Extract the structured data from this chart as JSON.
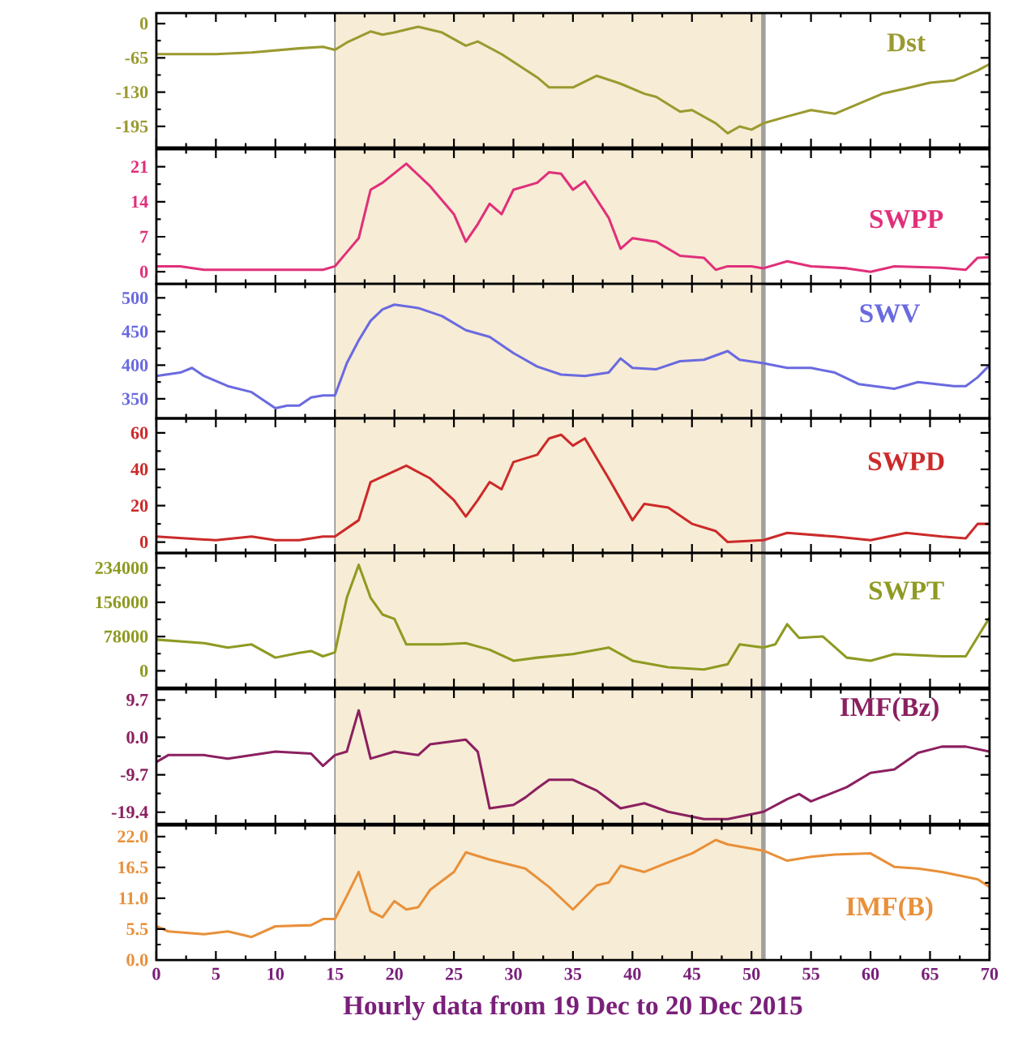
{
  "chart_data": [
    {
      "type": "line",
      "xlim": [
        0,
        70
      ],
      "xticks": [
        0,
        5,
        10,
        15,
        20,
        25,
        30,
        35,
        40,
        45,
        50,
        55,
        60,
        65,
        70
      ],
      "ylim": [
        -235,
        20
      ],
      "yticks": [
        0,
        -65,
        -130,
        -195
      ],
      "tick_labels": "y",
      "bands": [
        {
          "axis": "x",
          "from": 15,
          "to": 51,
          "color": "#f7ecd5"
        }
      ],
      "ref_lines": [
        {
          "axis": "x",
          "value": 51,
          "color": "#a0a0a0"
        }
      ],
      "series": [
        {
          "name": "Dst",
          "color": "#9a9a30",
          "x": [
            0,
            5,
            8,
            12,
            14,
            15,
            16,
            18,
            19,
            20,
            22,
            24,
            26,
            27,
            29,
            32,
            33,
            35,
            37,
            39,
            41,
            42,
            44,
            45,
            47,
            48,
            49,
            50,
            51,
            53,
            55,
            57,
            59,
            61,
            63,
            65,
            67,
            69,
            70
          ],
          "values": [
            -58,
            -58,
            -55,
            -47,
            -44,
            -50,
            -36,
            -15,
            -21,
            -17,
            -6,
            -17,
            -42,
            -34,
            -58,
            -102,
            -121,
            -121,
            -99,
            -114,
            -133,
            -139,
            -167,
            -164,
            -189,
            -208,
            -195,
            -201,
            -189,
            -176,
            -164,
            -171,
            -152,
            -133,
            -123,
            -112,
            -108,
            -89,
            -77
          ]
        }
      ]
    },
    {
      "type": "line",
      "xlim": [
        0,
        70
      ],
      "xticks": [
        0,
        5,
        10,
        15,
        20,
        25,
        30,
        35,
        40,
        45,
        50,
        55,
        60,
        65,
        70
      ],
      "ylim": [
        -2.4,
        24.5
      ],
      "yticks": [
        0,
        7,
        14,
        21
      ],
      "tick_labels": "y",
      "bands": [
        {
          "axis": "x",
          "from": 15,
          "to": 51,
          "color": "#f7ecd5"
        }
      ],
      "ref_lines": [
        {
          "axis": "x",
          "value": 51,
          "color": "#a0a0a0"
        }
      ],
      "series": [
        {
          "name": "SWPP",
          "color": "#e0307a",
          "x": [
            0,
            2,
            4,
            14,
            15,
            16,
            17,
            18,
            19,
            21,
            23,
            25,
            26,
            27,
            28,
            29,
            30,
            32,
            33,
            34,
            35,
            36,
            38,
            39,
            40,
            42,
            44,
            46,
            47,
            48,
            50,
            51,
            53,
            55,
            58,
            60,
            62,
            66,
            68,
            69,
            70
          ],
          "values": [
            1.1,
            1.1,
            0.4,
            0.4,
            1.1,
            3.9,
            6.7,
            16.4,
            17.8,
            21.6,
            17.1,
            11.5,
            6,
            9.5,
            13.6,
            11.5,
            16.4,
            17.8,
            19.9,
            19.6,
            16.4,
            18.1,
            10.8,
            4.6,
            6.7,
            6,
            3.2,
            2.8,
            0.4,
            1.1,
            1.1,
            0.7,
            2.1,
            1.1,
            0.7,
            0,
            1.1,
            0.8,
            0.4,
            2.8,
            2.9
          ]
        }
      ]
    },
    {
      "type": "line",
      "xlim": [
        0,
        70
      ],
      "xticks": [
        0,
        5,
        10,
        15,
        20,
        25,
        30,
        35,
        40,
        45,
        50,
        55,
        60,
        65,
        70
      ],
      "ylim": [
        321,
        521
      ],
      "yticks": [
        350,
        400,
        450,
        500
      ],
      "tick_labels": "y",
      "bands": [
        {
          "axis": "x",
          "from": 15,
          "to": 51,
          "color": "#f7ecd5"
        }
      ],
      "ref_lines": [
        {
          "axis": "x",
          "value": 51,
          "color": "#a0a0a0"
        }
      ],
      "series": [
        {
          "name": "SWV",
          "color": "#6a6ae0",
          "x": [
            0,
            2,
            3,
            4,
            6,
            8,
            10,
            11,
            12,
            13,
            14,
            15,
            16,
            17,
            18,
            19,
            20,
            22,
            24,
            26,
            28,
            30,
            32,
            34,
            36,
            38,
            39,
            40,
            42,
            44,
            46,
            48,
            49,
            51,
            53,
            55,
            57,
            59,
            62,
            64,
            67,
            68,
            69,
            70
          ],
          "values": [
            384,
            389,
            396,
            384,
            369,
            360,
            336,
            340,
            340,
            352,
            355,
            355,
            403,
            437,
            466,
            483,
            490,
            485,
            473,
            452,
            442,
            418,
            398,
            386,
            384,
            389,
            410,
            396,
            394,
            406,
            408,
            421,
            408,
            403,
            396,
            396,
            389,
            372,
            365,
            375,
            369,
            369,
            382,
            400
          ]
        }
      ]
    },
    {
      "type": "line",
      "xlim": [
        0,
        70
      ],
      "xticks": [
        0,
        5,
        10,
        15,
        20,
        25,
        30,
        35,
        40,
        45,
        50,
        55,
        60,
        65,
        70
      ],
      "ylim": [
        -6,
        68
      ],
      "yticks": [
        0,
        20,
        40,
        60
      ],
      "tick_labels": "y",
      "bands": [
        {
          "axis": "x",
          "from": 15,
          "to": 51,
          "color": "#f7ecd5"
        }
      ],
      "ref_lines": [
        {
          "axis": "x",
          "value": 51,
          "color": "#a0a0a0"
        }
      ],
      "series": [
        {
          "name": "SWPD",
          "color": "#cc2a2a",
          "x": [
            0,
            5,
            8,
            10,
            12,
            14,
            15,
            17,
            18,
            20,
            21,
            23,
            25,
            26,
            27,
            28,
            29,
            30,
            32,
            33,
            34,
            35,
            36,
            38,
            40,
            41,
            43,
            45,
            47,
            48,
            51,
            53,
            57,
            60,
            63,
            66,
            68,
            69,
            70
          ],
          "values": [
            3,
            1,
            3,
            1,
            1,
            3,
            3,
            12,
            33,
            39,
            42,
            35,
            23,
            14,
            23,
            33,
            29,
            44,
            48,
            57,
            59,
            53,
            57,
            35,
            12,
            21,
            19,
            10,
            6,
            0,
            1,
            5,
            3,
            1,
            5,
            3,
            2,
            10,
            10
          ]
        }
      ]
    },
    {
      "type": "line",
      "xlim": [
        0,
        70
      ],
      "xticks": [
        0,
        5,
        10,
        15,
        20,
        25,
        30,
        35,
        40,
        45,
        50,
        55,
        60,
        65,
        70
      ],
      "ylim": [
        -38000,
        268000
      ],
      "yticks": [
        0,
        78000,
        156000,
        234000
      ],
      "tick_labels": "y",
      "bands": [
        {
          "axis": "x",
          "from": 15,
          "to": 51,
          "color": "#f7ecd5"
        }
      ],
      "ref_lines": [
        {
          "axis": "x",
          "value": 51,
          "color": "#a0a0a0"
        }
      ],
      "series": [
        {
          "name": "SWPT",
          "color": "#8f9a22",
          "x": [
            0,
            4,
            6,
            8,
            10,
            12,
            13,
            14,
            15,
            16,
            17,
            18,
            19,
            20,
            21,
            24,
            26,
            28,
            30,
            32,
            35,
            38,
            40,
            43,
            46,
            48,
            49,
            51,
            52,
            53,
            54,
            56,
            58,
            60,
            62,
            66,
            68,
            70
          ],
          "values": [
            71000,
            63000,
            53000,
            60000,
            30000,
            41000,
            45000,
            33000,
            42000,
            166000,
            241000,
            166000,
            128000,
            118000,
            60000,
            60000,
            63000,
            48000,
            23000,
            30000,
            38000,
            53000,
            23000,
            8000,
            3000,
            15000,
            60000,
            53000,
            60000,
            106000,
            75000,
            78000,
            30000,
            23000,
            38000,
            33000,
            33000,
            121000
          ]
        }
      ]
    },
    {
      "type": "line",
      "xlim": [
        0,
        70
      ],
      "xticks": [
        0,
        5,
        10,
        15,
        20,
        25,
        30,
        35,
        40,
        45,
        50,
        55,
        60,
        65,
        70
      ],
      "ylim": [
        -22.4,
        12.5
      ],
      "yticks": [
        -19.4,
        -9.7,
        {
          "value": 0,
          "label": "0.0"
        },
        9.7
      ],
      "tick_labels": "y",
      "bands": [
        {
          "axis": "x",
          "from": 15,
          "to": 51,
          "color": "#f7ecd5"
        }
      ],
      "ref_lines": [
        {
          "axis": "x",
          "value": 51,
          "color": "#a0a0a0"
        }
      ],
      "series": [
        {
          "name": "IMF(Bz)",
          "color": "#8b2060",
          "x": [
            0,
            1,
            4,
            6,
            10,
            13,
            14,
            15,
            16,
            17,
            18,
            20,
            22,
            23,
            26,
            27,
            28,
            30,
            31,
            32,
            33,
            35,
            37,
            39,
            41,
            43,
            46,
            48,
            51,
            53,
            54,
            55,
            58,
            60,
            62,
            64,
            66,
            68,
            70
          ],
          "values": [
            -6.4,
            -4.6,
            -4.6,
            -5.5,
            -3.7,
            -4.2,
            -7.4,
            -4.6,
            -3.7,
            7,
            -5.5,
            -3.7,
            -4.6,
            -1.8,
            -0.6,
            -3.7,
            -18.4,
            -17.5,
            -15.6,
            -13.2,
            -11,
            -11,
            -13.8,
            -18.4,
            -17.1,
            -19.3,
            -21.2,
            -21.2,
            -19.3,
            -16,
            -14.7,
            -16.6,
            -12.9,
            -9.2,
            -8.3,
            -4,
            -2.4,
            -2.4,
            -3.7
          ]
        }
      ]
    },
    {
      "type": "line",
      "xlim": [
        0,
        70
      ],
      "xticks": [
        0,
        5,
        10,
        15,
        20,
        25,
        30,
        35,
        40,
        45,
        50,
        55,
        60,
        65,
        70
      ],
      "ylim": [
        0,
        24
      ],
      "yticks": [
        {
          "value": 0,
          "label": "0.0"
        },
        5.5,
        {
          "value": 11,
          "label": "11.0"
        },
        16.5,
        {
          "value": 22,
          "label": "22.0"
        }
      ],
      "xlabel": "Hourly data from 19 Dec to 20 Dec 2015",
      "bands": [
        {
          "axis": "x",
          "from": 15,
          "to": 51,
          "color": "#f7ecd5"
        }
      ],
      "ref_lines": [
        {
          "axis": "x",
          "value": 51,
          "color": "#a0a0a0"
        }
      ],
      "series": [
        {
          "name": "IMF(B)",
          "color": "#e8903a",
          "x": [
            0,
            1,
            4,
            6,
            8,
            10,
            13,
            14,
            15,
            16,
            17,
            18,
            19,
            20,
            21,
            22,
            23,
            25,
            26,
            28,
            31,
            33,
            35,
            37,
            38,
            39,
            41,
            43,
            45,
            47,
            48,
            51,
            53,
            55,
            57,
            60,
            62,
            64,
            66,
            69,
            70
          ],
          "values": [
            6,
            5.1,
            4.6,
            5.1,
            4.1,
            6,
            6.2,
            7.3,
            7.3,
            11.4,
            15.7,
            8.7,
            7.6,
            10.5,
            9,
            9.4,
            12.5,
            15.7,
            19.2,
            17.9,
            16.3,
            13,
            9,
            13.3,
            13.8,
            16.8,
            15.7,
            17.4,
            19,
            21.4,
            20.6,
            19.5,
            17.7,
            18.4,
            18.8,
            19,
            16.6,
            16.3,
            15.7,
            14.4,
            13
          ]
        }
      ]
    }
  ]
}
